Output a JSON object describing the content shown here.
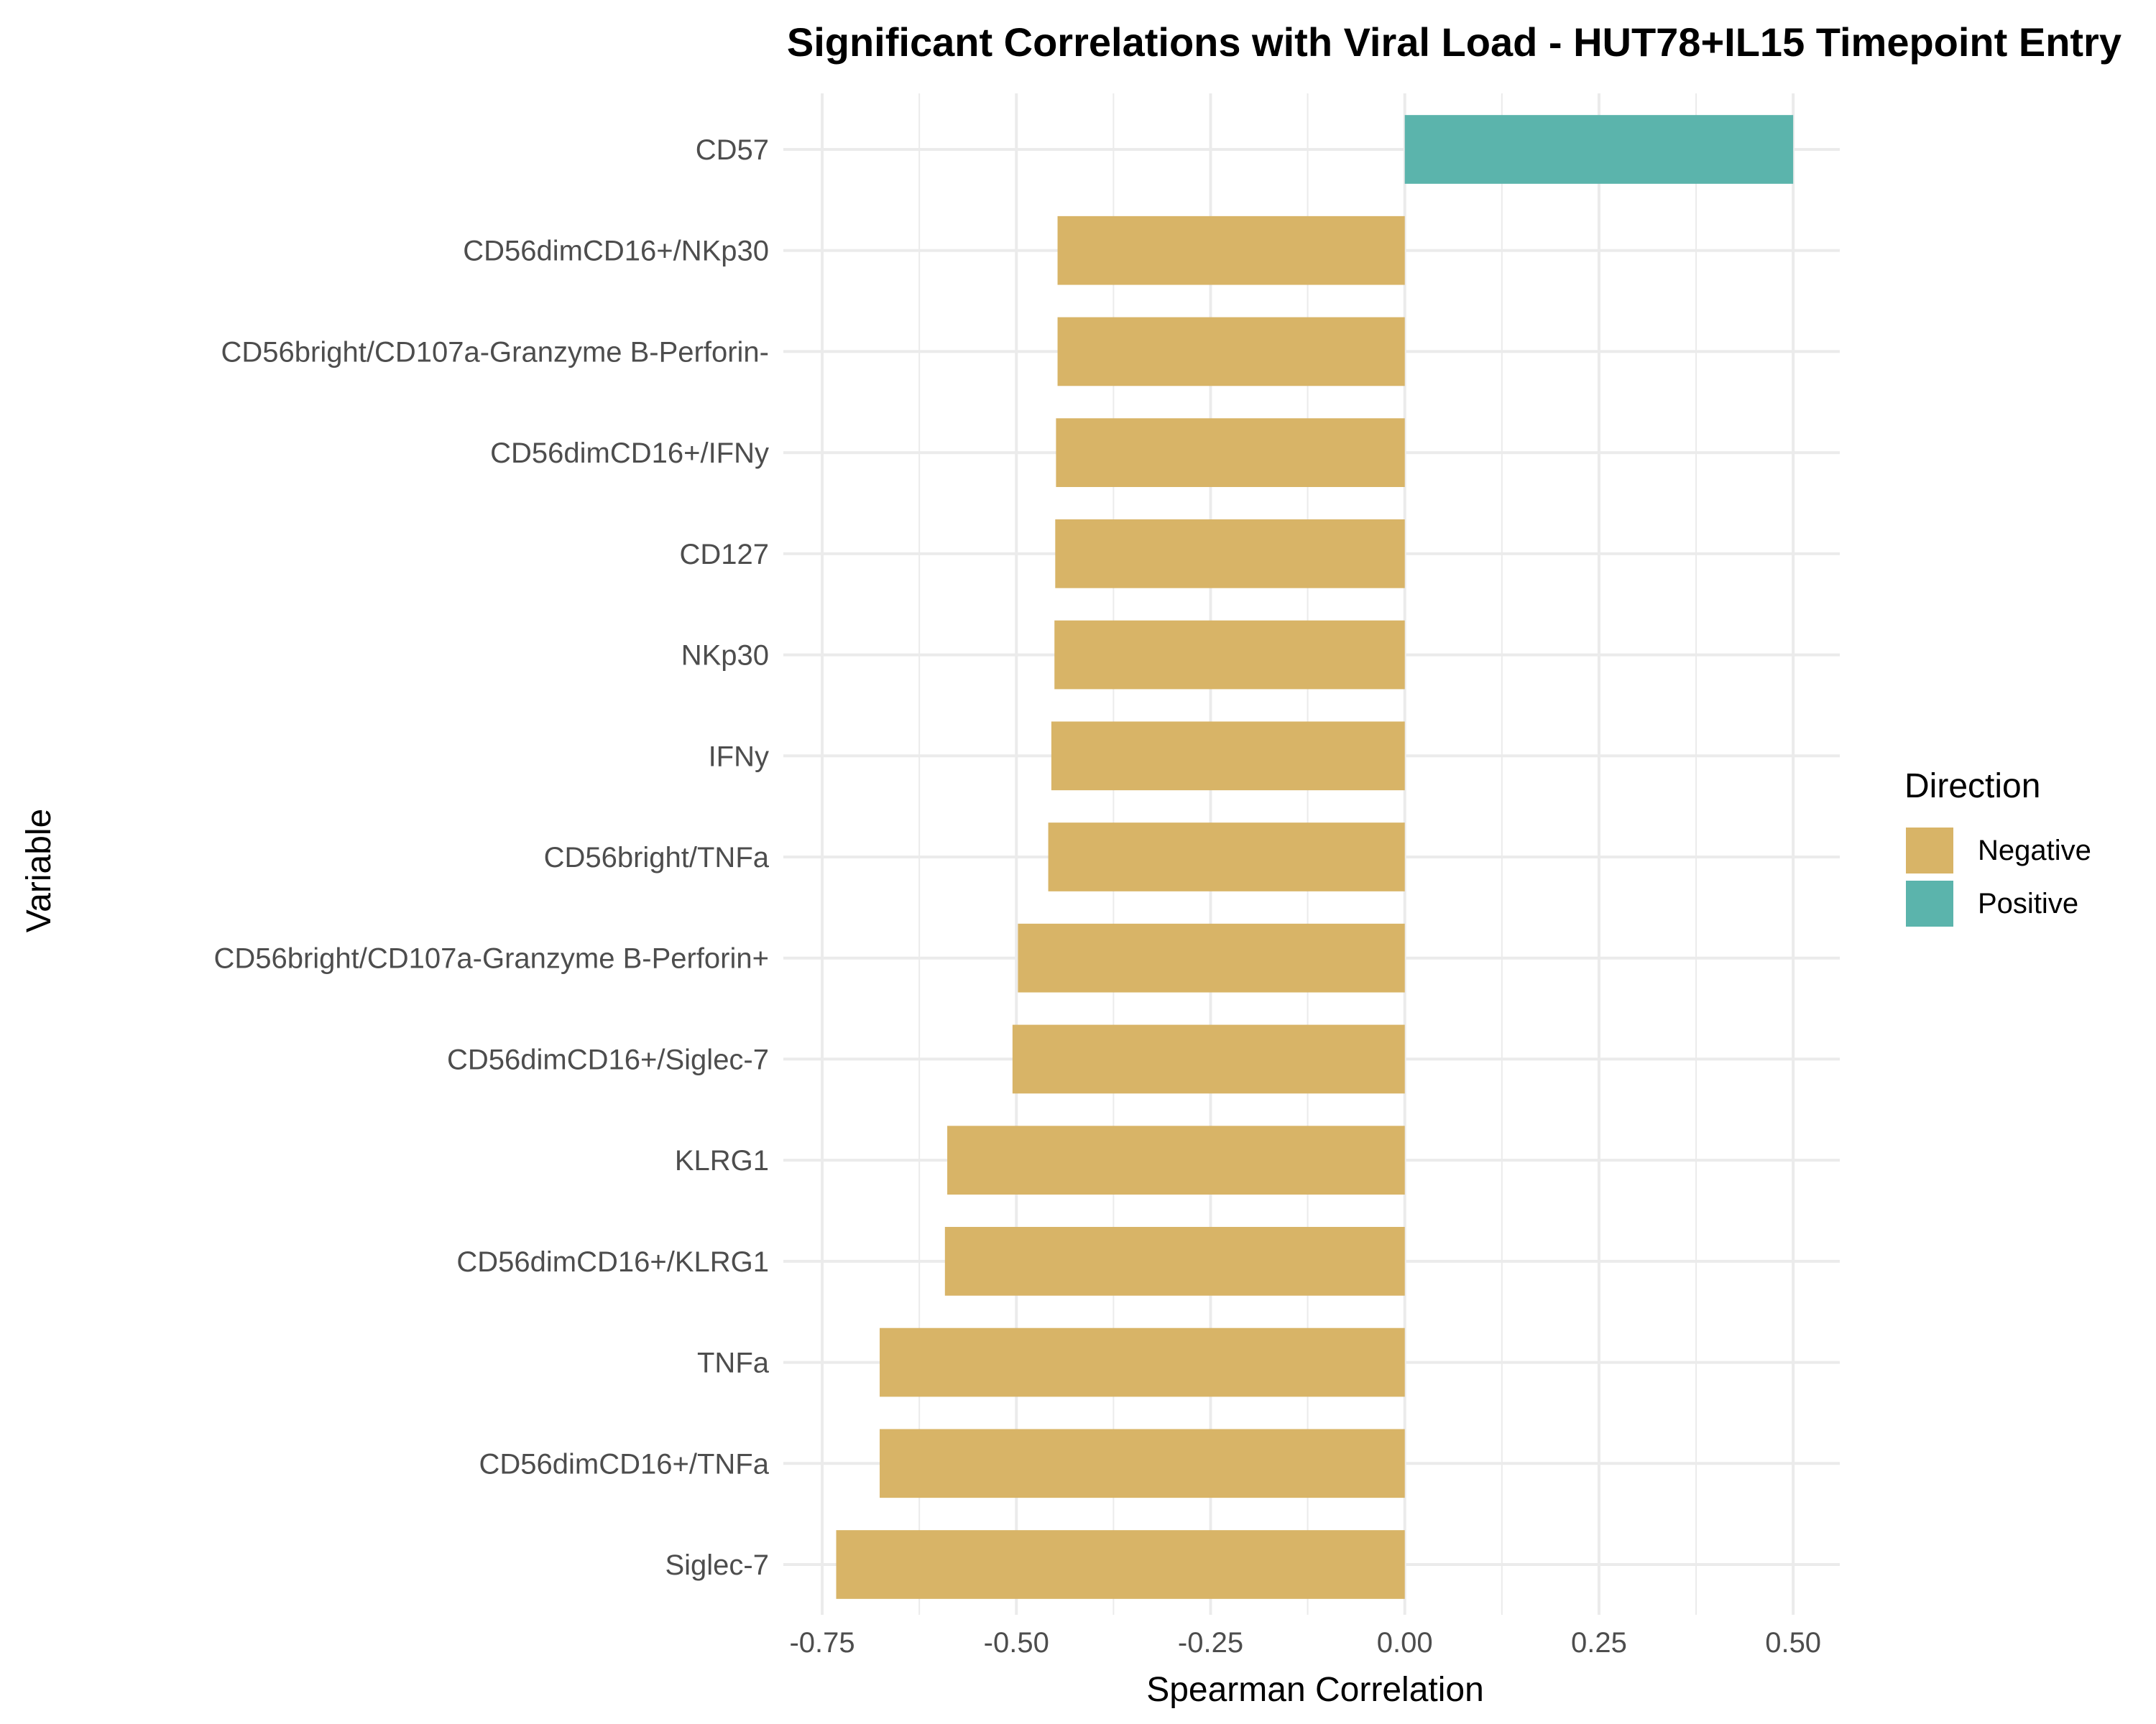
{
  "chart_data": {
    "type": "bar",
    "orientation": "horizontal",
    "title": "Significant Correlations with Viral Load - HUT78+IL15 Timepoint Entry",
    "xlabel": "Spearman Correlation",
    "ylabel": "Variable",
    "xlim": [
      -0.75,
      0.5
    ],
    "x_ticks": [
      "-0.75",
      "-0.50",
      "-0.25",
      "0.00",
      "0.25",
      "0.50"
    ],
    "x_tick_values": [
      -0.75,
      -0.5,
      -0.25,
      0.0,
      0.25,
      0.5
    ],
    "grid": true,
    "categories": [
      "CD57",
      "CD56dimCD16+/NKp30",
      "CD56bright/CD107a-Granzyme B-Perforin-",
      "CD56dimCD16+/IFNy",
      "CD127",
      "NKp30",
      "IFNy",
      "CD56bright/TNFa",
      "CD56bright/CD107a-Granzyme B-Perforin+",
      "CD56dimCD16+/Siglec-7",
      "KLRG1",
      "CD56dimCD16+/KLRG1",
      "TNFa",
      "CD56dimCD16+/TNFa",
      "Siglec-7"
    ],
    "values": [
      0.5,
      -0.447,
      -0.447,
      -0.449,
      -0.45,
      -0.451,
      -0.455,
      -0.459,
      -0.498,
      -0.505,
      -0.589,
      -0.592,
      -0.676,
      -0.676,
      -0.732
    ],
    "direction": [
      "Positive",
      "Negative",
      "Negative",
      "Negative",
      "Negative",
      "Negative",
      "Negative",
      "Negative",
      "Negative",
      "Negative",
      "Negative",
      "Negative",
      "Negative",
      "Negative",
      "Negative"
    ],
    "legend": {
      "title": "Direction",
      "placement": "right",
      "entries": [
        {
          "label": "Negative",
          "color": "#D8B467"
        },
        {
          "label": "Positive",
          "color": "#5BB4AC"
        }
      ]
    }
  }
}
